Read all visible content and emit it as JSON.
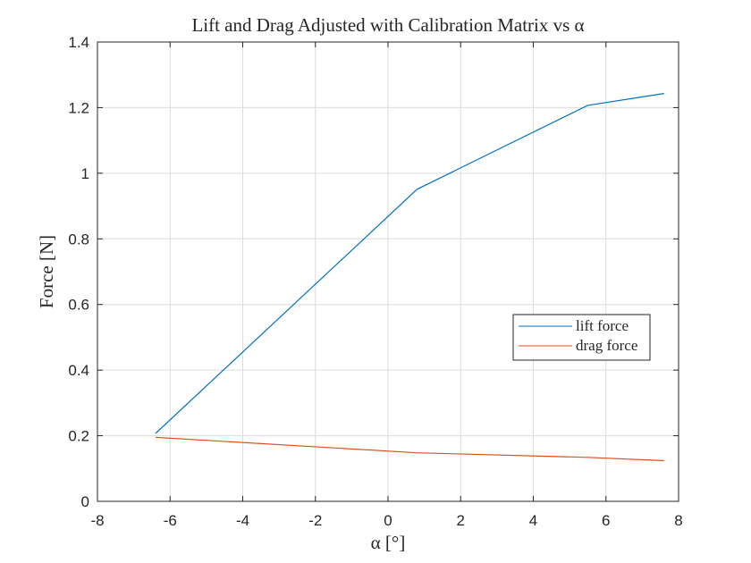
{
  "chart_data": {
    "type": "line",
    "title": "Lift and Drag Adjusted with Calibration Matrix vs α",
    "xlabel": "α [°]",
    "ylabel": "Force [N]",
    "xlim": [
      -8,
      8
    ],
    "ylim": [
      0,
      1.4
    ],
    "xticks": [
      -8,
      -6,
      -4,
      -2,
      0,
      2,
      4,
      6,
      8
    ],
    "xtick_labels": [
      "-8",
      "-6",
      "-4",
      "-2",
      "0",
      "2",
      "4",
      "6",
      "8"
    ],
    "yticks": [
      0,
      0.2,
      0.4,
      0.6,
      0.8,
      1,
      1.2,
      1.4
    ],
    "ytick_labels": [
      "0",
      "0.2",
      "0.4",
      "0.6",
      "0.8",
      "1",
      "1.2",
      "1.4"
    ],
    "grid": true,
    "legend_position": "right",
    "series": [
      {
        "name": "lift force",
        "color": "#0072BD",
        "x": [
          -6.4,
          0.8,
          5.5,
          7.6
        ],
        "y": [
          0.207,
          0.951,
          1.207,
          1.243
        ]
      },
      {
        "name": "drag force",
        "color": "#D95319",
        "x": [
          -6.4,
          0.8,
          5.5,
          7.6
        ],
        "y": [
          0.195,
          0.148,
          0.134,
          0.124
        ]
      }
    ]
  }
}
